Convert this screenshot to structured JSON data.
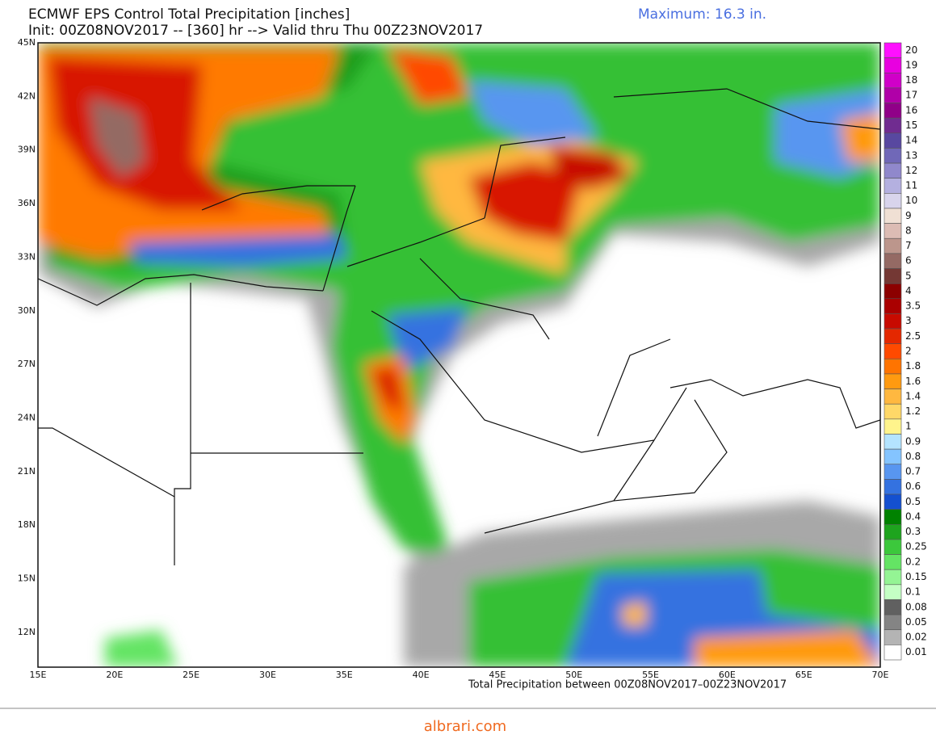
{
  "header": {
    "title": "ECMWF EPS Control Total Precipitation [inches]",
    "subtitle": "Init: 00Z08NOV2017 -- [360] hr --> Valid thru Thu 00Z23NOV2017",
    "maximum": "Maximum: 16.3 in."
  },
  "map": {
    "lat_labels": [
      "45N",
      "42N",
      "39N",
      "36N",
      "33N",
      "30N",
      "27N",
      "24N",
      "21N",
      "18N",
      "15N",
      "12N"
    ],
    "lon_labels": [
      "15E",
      "20E",
      "25E",
      "30E",
      "35E",
      "40E",
      "45E",
      "50E",
      "55E",
      "60E",
      "65E",
      "70E"
    ],
    "footer": "Total Precipitation between 00Z08NOV2017–00Z23NOV2017"
  },
  "colorbar": [
    {
      "label": "20",
      "color": "#ff10ff"
    },
    {
      "label": "19",
      "color": "#e800e0"
    },
    {
      "label": "18",
      "color": "#d000c8"
    },
    {
      "label": "17",
      "color": "#b000a8"
    },
    {
      "label": "16",
      "color": "#900088"
    },
    {
      "label": "15",
      "color": "#702c90"
    },
    {
      "label": "14",
      "color": "#5848a0"
    },
    {
      "label": "13",
      "color": "#7068b8"
    },
    {
      "label": "12",
      "color": "#9088cc"
    },
    {
      "label": "11",
      "color": "#b4b0e0"
    },
    {
      "label": "10",
      "color": "#d8d4ec"
    },
    {
      "label": "9",
      "color": "#f0e0d4"
    },
    {
      "label": "8",
      "color": "#dcbcb4"
    },
    {
      "label": "7",
      "color": "#bc968c"
    },
    {
      "label": "6",
      "color": "#946a64"
    },
    {
      "label": "5",
      "color": "#743834"
    },
    {
      "label": "4",
      "color": "#8c0000"
    },
    {
      "label": "3.5",
      "color": "#aa0000"
    },
    {
      "label": "3",
      "color": "#c80a00"
    },
    {
      "label": "2.5",
      "color": "#e42800"
    },
    {
      "label": "2",
      "color": "#ff4a00"
    },
    {
      "label": "1.8",
      "color": "#ff7400"
    },
    {
      "label": "1.6",
      "color": "#ff9a10"
    },
    {
      "label": "1.4",
      "color": "#ffb840"
    },
    {
      "label": "1.2",
      "color": "#ffd868"
    },
    {
      "label": "1",
      "color": "#fff48c"
    },
    {
      "label": "0.9",
      "color": "#b4e4ff"
    },
    {
      "label": "0.8",
      "color": "#84c4ff"
    },
    {
      "label": "0.7",
      "color": "#5896f0"
    },
    {
      "label": "0.6",
      "color": "#3472e0"
    },
    {
      "label": "0.5",
      "color": "#1450d0"
    },
    {
      "label": "0.4",
      "color": "#008200"
    },
    {
      "label": "0.3",
      "color": "#1ea41e"
    },
    {
      "label": "0.25",
      "color": "#3cc83c"
    },
    {
      "label": "0.2",
      "color": "#64e464"
    },
    {
      "label": "0.15",
      "color": "#94f494"
    },
    {
      "label": "0.1",
      "color": "#c4ffc4"
    },
    {
      "label": "0.08",
      "color": "#606060"
    },
    {
      "label": "0.05",
      "color": "#848484"
    },
    {
      "label": "0.02",
      "color": "#b4b4b4"
    },
    {
      "label": "0.01",
      "color": "#ffffff"
    }
  ],
  "watermark": "albrari.com"
}
